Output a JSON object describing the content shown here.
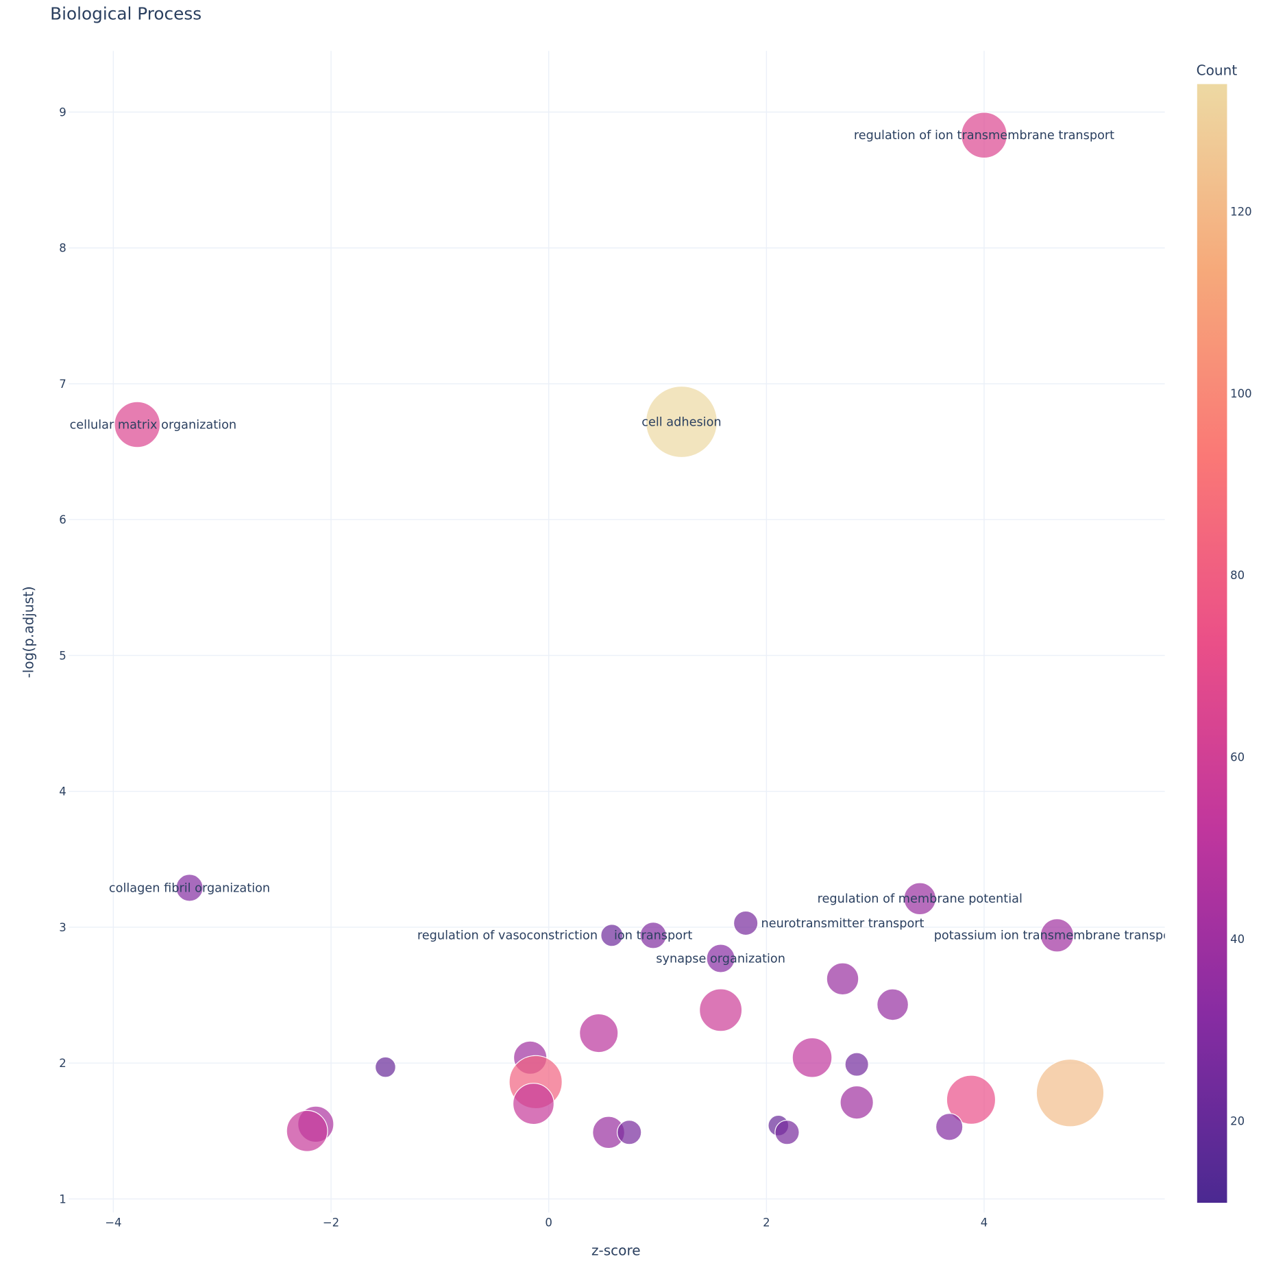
{
  "chart_data": {
    "type": "scatter",
    "title": "Biological Process",
    "xlabel": "z-score",
    "ylabel": "-log(p.adjust)",
    "xlim": [
      -4.41,
      5.66
    ],
    "ylim": [
      0.9,
      9.45
    ],
    "xticks": [
      -4,
      -2,
      0,
      2,
      4
    ],
    "xtick_labels": [
      "−4",
      "−2",
      "0",
      "2",
      "4"
    ],
    "yticks": [
      1,
      2,
      3,
      4,
      5,
      6,
      7,
      8,
      9
    ],
    "ytick_labels": [
      "1",
      "2",
      "3",
      "4",
      "5",
      "6",
      "7",
      "8",
      "9"
    ],
    "grid": true,
    "marker_size_variable": "Count",
    "colorbar": {
      "title": "Count",
      "range": [
        11,
        134
      ],
      "ticks": [
        20,
        40,
        60,
        80,
        100,
        120
      ],
      "tick_labels": [
        "20",
        "40",
        "60",
        "80",
        "100",
        "120"
      ],
      "colorscale": [
        "#4b2991",
        "#872ca2",
        "#c0369d",
        "#ea4f88",
        "#fa7876",
        "#f6a97a",
        "#edd9a3"
      ]
    },
    "points": [
      {
        "x": 4.0,
        "y": 8.83,
        "count": 65,
        "label": "regulation of ion transmembrane transport"
      },
      {
        "x": -3.78,
        "y": 6.7,
        "count": 65,
        "label": "extracellular matrix organization"
      },
      {
        "x": 1.22,
        "y": 6.72,
        "count": 134,
        "label": "cell adhesion"
      },
      {
        "x": -3.3,
        "y": 3.29,
        "count": 30,
        "label": "collagen fibril organization"
      },
      {
        "x": 3.41,
        "y": 3.21,
        "count": 38,
        "label": "regulation of membrane potential"
      },
      {
        "x": 1.81,
        "y": 3.03,
        "count": 26,
        "label": "neurotransmitter transport"
      },
      {
        "x": 0.58,
        "y": 2.94,
        "count": 23,
        "label": "regulation of vasoconstriction"
      },
      {
        "x": 0.96,
        "y": 2.94,
        "count": 29,
        "label": "ion transport"
      },
      {
        "x": 4.67,
        "y": 2.94,
        "count": 40,
        "label": "potassium ion transmembrane transport"
      },
      {
        "x": 1.58,
        "y": 2.77,
        "count": 32,
        "label": "synapse organization"
      },
      {
        "x": 2.7,
        "y": 2.62,
        "count": 38,
        "label": ""
      },
      {
        "x": 3.16,
        "y": 2.43,
        "count": 37,
        "label": ""
      },
      {
        "x": 1.58,
        "y": 2.39,
        "count": 58,
        "label": ""
      },
      {
        "x": 0.46,
        "y": 2.22,
        "count": 50,
        "label": ""
      },
      {
        "x": -0.17,
        "y": 2.04,
        "count": 40,
        "label": ""
      },
      {
        "x": 2.42,
        "y": 2.04,
        "count": 52,
        "label": ""
      },
      {
        "x": -1.5,
        "y": 1.97,
        "count": 21,
        "label": ""
      },
      {
        "x": 2.83,
        "y": 1.99,
        "count": 25,
        "label": ""
      },
      {
        "x": -0.12,
        "y": 1.86,
        "count": 82,
        "label": ""
      },
      {
        "x": 4.79,
        "y": 1.78,
        "count": 122,
        "label": ""
      },
      {
        "x": 3.88,
        "y": 1.73,
        "count": 72,
        "label": ""
      },
      {
        "x": -0.14,
        "y": 1.7,
        "count": 55,
        "label": ""
      },
      {
        "x": 2.83,
        "y": 1.71,
        "count": 40,
        "label": ""
      },
      {
        "x": -2.14,
        "y": 1.55,
        "count": 45,
        "label": ""
      },
      {
        "x": -2.22,
        "y": 1.5,
        "count": 55,
        "label": ""
      },
      {
        "x": 2.11,
        "y": 1.54,
        "count": 21,
        "label": ""
      },
      {
        "x": 3.68,
        "y": 1.53,
        "count": 30,
        "label": ""
      },
      {
        "x": 2.19,
        "y": 1.49,
        "count": 26,
        "label": ""
      },
      {
        "x": 0.55,
        "y": 1.49,
        "count": 38,
        "label": ""
      },
      {
        "x": 0.74,
        "y": 1.49,
        "count": 26,
        "label": ""
      }
    ]
  }
}
